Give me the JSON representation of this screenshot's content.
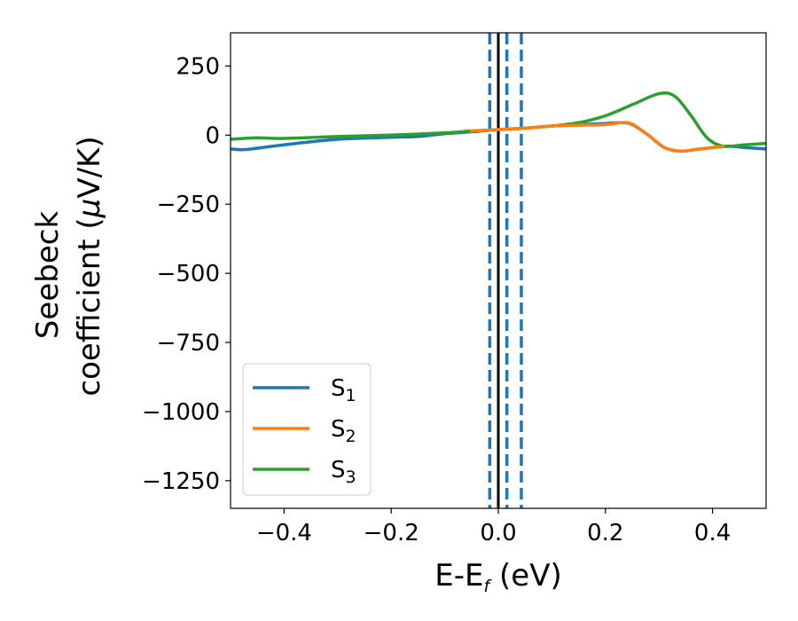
{
  "chart_data": {
    "type": "line",
    "xlabel": {
      "main": "E-E",
      "sub": "f",
      "tail": " (eV)"
    },
    "ylabel": {
      "line1": "Seebeck",
      "line2_prefix": "coefficient  (",
      "line2_mu": "μ",
      "line2_suffix": "V/K)"
    },
    "xlim": [
      -0.5,
      0.5
    ],
    "ylim": [
      -1350,
      370
    ],
    "xticks": [
      -0.4,
      -0.2,
      0.0,
      0.2,
      0.4
    ],
    "xtick_labels": [
      "−0.4",
      "−0.2",
      "0.0",
      "0.2",
      "0.4"
    ],
    "yticks": [
      250,
      0,
      -250,
      -500,
      -750,
      -1000,
      -1250
    ],
    "ytick_labels": [
      "250",
      "0",
      "−250",
      "−500",
      "−750",
      "−1000",
      "−1250"
    ],
    "grid": false,
    "legend_position": "lower-left",
    "series": [
      {
        "base": "S",
        "sub": "1",
        "color": "#1f77b4",
        "x": [
          -0.5,
          -0.47,
          -0.4,
          -0.3,
          -0.2,
          -0.15,
          -0.1,
          -0.05,
          0.0,
          0.05,
          0.1,
          0.15,
          0.2,
          0.23,
          0.25,
          0.28,
          0.31,
          0.34,
          0.37,
          0.4,
          0.43,
          0.46,
          0.5
        ],
        "y": [
          -50,
          -52,
          -35,
          -15,
          -8,
          -5,
          5,
          12,
          20,
          25,
          33,
          38,
          42,
          45,
          38,
          0,
          -45,
          -58,
          -52,
          -45,
          -40,
          -45,
          -50
        ]
      },
      {
        "base": "S",
        "sub": "2",
        "color": "#ff7f0e",
        "x": [
          -0.05,
          0.0,
          0.05,
          0.1,
          0.15,
          0.2,
          0.23,
          0.25,
          0.28,
          0.31,
          0.34,
          0.37,
          0.4,
          0.42
        ],
        "y": [
          15,
          20,
          25,
          33,
          36,
          38,
          45,
          40,
          0,
          -45,
          -58,
          -52,
          -45,
          -40
        ]
      },
      {
        "base": "S",
        "sub": "3",
        "color": "#2ca02c",
        "x": [
          -0.5,
          -0.45,
          -0.4,
          -0.3,
          -0.2,
          -0.1,
          -0.05,
          0.0,
          0.05,
          0.1,
          0.15,
          0.2,
          0.25,
          0.3,
          0.33,
          0.36,
          0.39,
          0.42,
          0.46,
          0.5
        ],
        "y": [
          -15,
          -10,
          -12,
          -5,
          0,
          8,
          15,
          20,
          25,
          33,
          45,
          70,
          110,
          150,
          140,
          70,
          -10,
          -40,
          -35,
          -30
        ]
      }
    ],
    "vlines": [
      {
        "x": 0.0,
        "color": "#000000",
        "style": "solid"
      },
      {
        "x": -0.016,
        "color": "#1f77b4",
        "style": "dashed"
      },
      {
        "x": 0.016,
        "color": "#1f77b4",
        "style": "dashed"
      },
      {
        "x": 0.043,
        "color": "#1f77b4",
        "style": "dashed"
      }
    ]
  }
}
